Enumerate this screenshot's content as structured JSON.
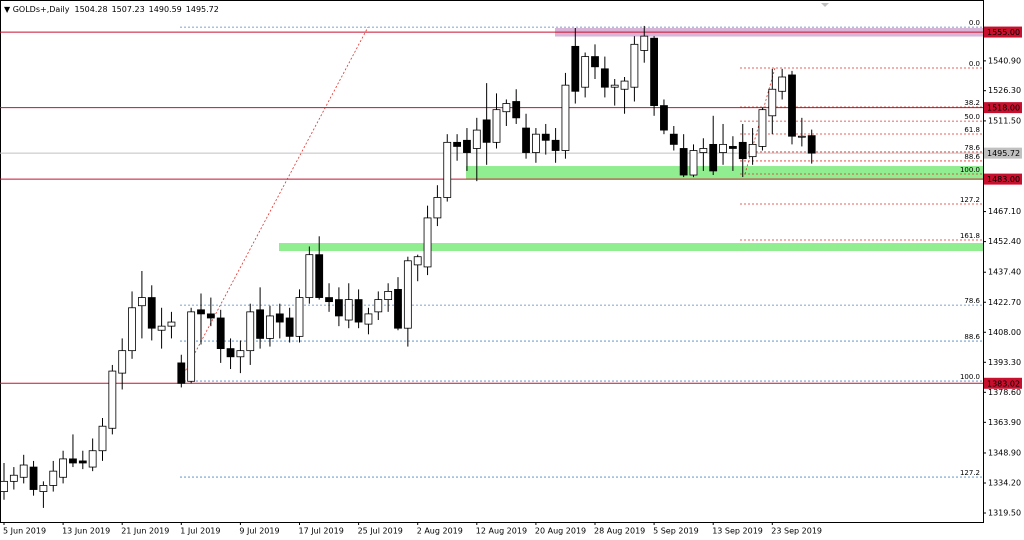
{
  "chart_data": {
    "type": "candlestick",
    "title": "GOLDs+,Daily",
    "categories": [
      "5 Jun 2019",
      null,
      null,
      null,
      null,
      null,
      "13 Jun 2019",
      null,
      null,
      null,
      null,
      null,
      "21 Jun 2019",
      null,
      null,
      null,
      null,
      null,
      "1 Jul 2019",
      null,
      null,
      null,
      null,
      null,
      "9 Jul 2019",
      null,
      null,
      null,
      null,
      null,
      "17 Jul 2019",
      null,
      null,
      null,
      null,
      null,
      "25 Jul 2019",
      null,
      null,
      null,
      null,
      null,
      "2 Aug 2019",
      null,
      null,
      null,
      null,
      null,
      "12 Aug 2019",
      null,
      null,
      null,
      null,
      null,
      "20 Aug 2019",
      null,
      null,
      null,
      null,
      null,
      "28 Aug 2019",
      null,
      null,
      null,
      null,
      null,
      "5 Sep 2019",
      null,
      null,
      null,
      null,
      null,
      "13 Sep 2019",
      null,
      null,
      null,
      null,
      null,
      "23 Sep 2019",
      null,
      null,
      null,
      null
    ],
    "open": [
      1330,
      1335,
      1337,
      1342,
      1330,
      1333,
      1337,
      1346,
      1345,
      1342,
      1350,
      1361,
      1388,
      1399,
      1421,
      1425,
      1409,
      1411,
      1393,
      1384,
      1419,
      1417,
      1415,
      1400,
      1396,
      1399,
      1419,
      1405,
      1417,
      1415,
      1406,
      1425,
      1446,
      1425,
      1424,
      1414,
      1424,
      1412,
      1418,
      1424,
      1429,
      1410,
      1441,
      1440,
      1464,
      1474,
      1501,
      1502,
      1498,
      1512,
      1501,
      1516,
      1521,
      1508,
      1496,
      1505,
      1502,
      1497,
      1548,
      1528,
      1543,
      1537,
      1528,
      1527,
      1528,
      1546,
      1552,
      1519,
      1505,
      1498,
      1485,
      1496,
      1500,
      1496,
      1499,
      1501,
      1494,
      1499,
      1514,
      1526,
      1534,
      1504,
      1504.28
    ],
    "high": [
      1344,
      1342,
      1348,
      1345,
      1335,
      1345,
      1350,
      1358,
      1350,
      1356,
      1366,
      1392,
      1405,
      1428,
      1438,
      1431,
      1420,
      1418,
      1397,
      1420,
      1427,
      1425,
      1419,
      1405,
      1404,
      1422,
      1430,
      1421,
      1422,
      1420,
      1429,
      1450,
      1455,
      1432,
      1430,
      1432,
      1429,
      1420,
      1428,
      1432,
      1435,
      1445,
      1446,
      1470,
      1480,
      1505,
      1505,
      1508,
      1513,
      1530,
      1525,
      1522,
      1527,
      1515,
      1508,
      1510,
      1508,
      1535,
      1557,
      1545,
      1549,
      1543,
      1532,
      1533,
      1553,
      1558,
      1553,
      1522,
      1509,
      1505,
      1500,
      1503,
      1514,
      1510,
      1504,
      1510,
      1508,
      1518,
      1537,
      1537,
      1536,
      1513,
      1507.23
    ],
    "low": [
      1326,
      1331,
      1334,
      1328,
      1322,
      1330,
      1334,
      1342,
      1341,
      1340,
      1345,
      1358,
      1380,
      1395,
      1405,
      1404,
      1400,
      1405,
      1381,
      1383,
      1402,
      1411,
      1393,
      1390,
      1388,
      1392,
      1400,
      1401,
      1405,
      1403,
      1403,
      1422,
      1424,
      1418,
      1411,
      1410,
      1410,
      1407,
      1414,
      1418,
      1409,
      1401,
      1433,
      1436,
      1460,
      1472,
      1492,
      1487,
      1482,
      1490,
      1498,
      1509,
      1510,
      1493,
      1491,
      1495,
      1491,
      1493,
      1520,
      1523,
      1532,
      1523,
      1519,
      1515,
      1521,
      1540,
      1514,
      1505,
      1497,
      1484,
      1484,
      1487,
      1485,
      1490,
      1487,
      1484,
      1490,
      1497,
      1505,
      1522,
      1500,
      1499,
      1490.59
    ],
    "close": [
      1335,
      1338,
      1343,
      1331,
      1333,
      1340,
      1346,
      1344,
      1344,
      1350,
      1362,
      1389,
      1399,
      1420,
      1425,
      1410,
      1411,
      1413,
      1383,
      1418,
      1417,
      1415,
      1400,
      1396,
      1399,
      1418,
      1405,
      1416,
      1413,
      1406,
      1425,
      1446,
      1425,
      1423,
      1416,
      1424,
      1413,
      1417,
      1424,
      1428,
      1410,
      1443,
      1445,
      1464,
      1474,
      1501,
      1499,
      1496,
      1507,
      1501,
      1517,
      1520,
      1513,
      1496,
      1505,
      1502,
      1497,
      1529,
      1526,
      1543,
      1538,
      1528,
      1529,
      1531,
      1549,
      1553,
      1519,
      1507,
      1500,
      1485,
      1497,
      1498,
      1487,
      1500,
      1498,
      1493,
      1500,
      1517,
      1527,
      1533,
      1504,
      1504,
      1495.72
    ],
    "up_color": "#ffffff",
    "down_color": "#000000",
    "ylim": [
      1315.1,
      1570.7
    ],
    "yticks": [
      {
        "value": 1540.9,
        "label": "1540.90"
      },
      {
        "value": 1526.3,
        "label": "1526.30"
      },
      {
        "value": 1511.5,
        "label": "1511.50"
      },
      {
        "value": 1467.1,
        "label": "1467.10"
      },
      {
        "value": 1452.4,
        "label": "1452.40"
      },
      {
        "value": 1437.4,
        "label": "1437.40"
      },
      {
        "value": 1422.7,
        "label": "1422.70"
      },
      {
        "value": 1408,
        "label": "1408.00"
      },
      {
        "value": 1393.3,
        "label": "1393.30"
      },
      {
        "value": 1378.6,
        "label": "1378.60"
      },
      {
        "value": 1363.9,
        "label": "1363.90"
      },
      {
        "value": 1348.9,
        "label": "1348.90"
      },
      {
        "value": 1334.2,
        "label": "1334.20"
      },
      {
        "value": 1319.5,
        "label": "1319.50"
      }
    ],
    "levels": [
      {
        "value": 1555,
        "label": "1555.00",
        "color": "#c8102e"
      },
      {
        "value": 1518,
        "label": "1518.00",
        "color": "#c8102e"
      },
      {
        "value": 1495.72,
        "label": "1495.72",
        "color": "#c0c0c0"
      },
      {
        "value": 1483,
        "label": "1483.00",
        "color": "#c8102e"
      },
      {
        "value": 1383.02,
        "label": "1383.02",
        "color": "#c8102e"
      }
    ],
    "zones": [
      {
        "from": 1552.8,
        "to": 1557,
        "color": "#d8b4d8"
      },
      {
        "from": 1483,
        "to": 1489.4,
        "color": "#90ee90"
      },
      {
        "from": 1447.8,
        "to": 1451.7,
        "color": "#90ee90"
      }
    ],
    "fibs": [
      {
        "color": "#4a86c5",
        "levels": [
          {
            "label": "0.0",
            "price": 1557.4
          },
          {
            "label": "78.6",
            "price": 1421.3
          },
          {
            "label": "88.6",
            "price": 1403.7
          },
          {
            "label": "100.0",
            "price": 1384.1
          },
          {
            "label": "127.2",
            "price": 1337.1
          }
        ]
      },
      {
        "color": "#e0302a",
        "levels": [
          {
            "label": "0.0",
            "price": 1537.4
          },
          {
            "label": "38.2",
            "price": 1518.3
          },
          {
            "label": "50.0",
            "price": 1511.4
          },
          {
            "label": "61.8",
            "price": 1505.1
          },
          {
            "label": "78.6",
            "price": 1496.3
          },
          {
            "label": "88.6",
            "price": 1491.9
          },
          {
            "label": "100.0",
            "price": 1485.5
          },
          {
            "label": "127.2",
            "price": 1470.8
          },
          {
            "label": "161.8",
            "price": 1453.2
          }
        ]
      }
    ]
  }
}
